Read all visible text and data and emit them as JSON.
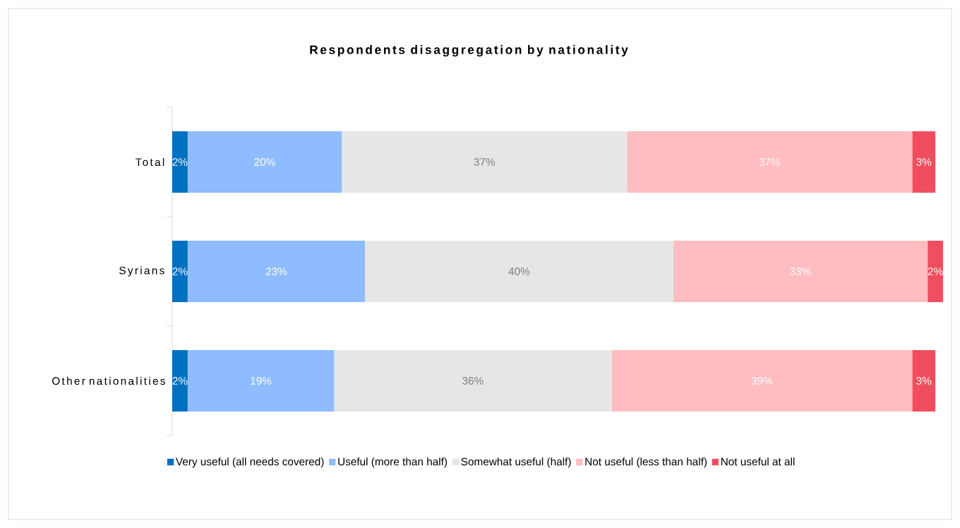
{
  "chart_data": {
    "type": "bar",
    "orientation": "horizontal",
    "stacked": true,
    "title": "Respondents disaggregation by nationality",
    "categories": [
      "Total",
      "Syrians",
      "Other nationalities"
    ],
    "series": [
      {
        "name": "Very useful (all needs covered)",
        "color": "#0070c0",
        "values": [
          2,
          2,
          2
        ],
        "value_labels": [
          "2%",
          "2%",
          "2%"
        ]
      },
      {
        "name": "Useful (more than half)",
        "color": "#8fbcff",
        "values": [
          20,
          23,
          19
        ],
        "value_labels": [
          "20%",
          "23%",
          "19%"
        ]
      },
      {
        "name": "Somewhat useful (half)",
        "color": "#e6e6e6",
        "values": [
          37,
          40,
          36
        ],
        "value_labels": [
          "37%",
          "40%",
          "36%"
        ]
      },
      {
        "name": "Not useful (less than half)",
        "color": "#ffbdc1",
        "values": [
          37,
          33,
          39
        ],
        "value_labels": [
          "37%",
          "33%",
          "39%"
        ]
      },
      {
        "name": "Not useful at all",
        "color": "#f04e5e",
        "values": [
          3,
          2,
          3
        ],
        "value_labels": [
          "3%",
          "2%",
          "3%"
        ]
      }
    ],
    "legend": "bottom"
  }
}
